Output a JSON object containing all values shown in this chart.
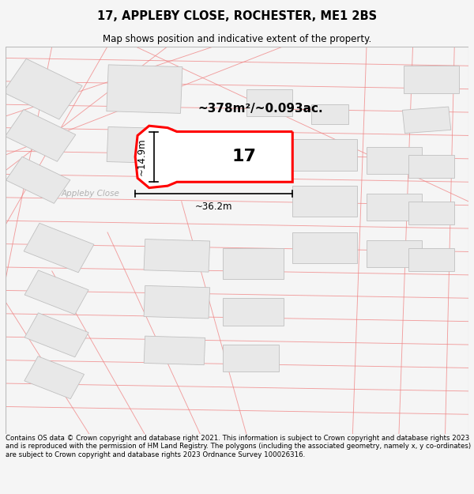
{
  "title": "17, APPLEBY CLOSE, ROCHESTER, ME1 2BS",
  "subtitle": "Map shows position and indicative extent of the property.",
  "area_text": "~378m²/~0.093ac.",
  "label_17": "17",
  "dim_width": "~36.2m",
  "dim_height": "~14.9m",
  "road_label": "Appleby Close",
  "footer": "Contains OS data © Crown copyright and database right 2021. This information is subject to Crown copyright and database rights 2023 and is reproduced with the permission of HM Land Registry. The polygons (including the associated geometry, namely x, y co-ordinates) are subject to Crown copyright and database rights 2023 Ordnance Survey 100026316.",
  "bg_color": "#f5f5f5",
  "map_bg": "#ffffff",
  "building_fill": "#e8e8e8",
  "building_edge": "#c8c8c8",
  "road_line_color": "#f08080",
  "highlight_color": "#ff0000",
  "highlight_fill": "#ffffff",
  "dim_color": "#000000",
  "title_fontsize": 10.5,
  "subtitle_fontsize": 8.5,
  "footer_fontsize": 6.2,
  "road_label_color": "#b0b0b0",
  "road_lw": 0.65,
  "road_alpha": 0.75
}
